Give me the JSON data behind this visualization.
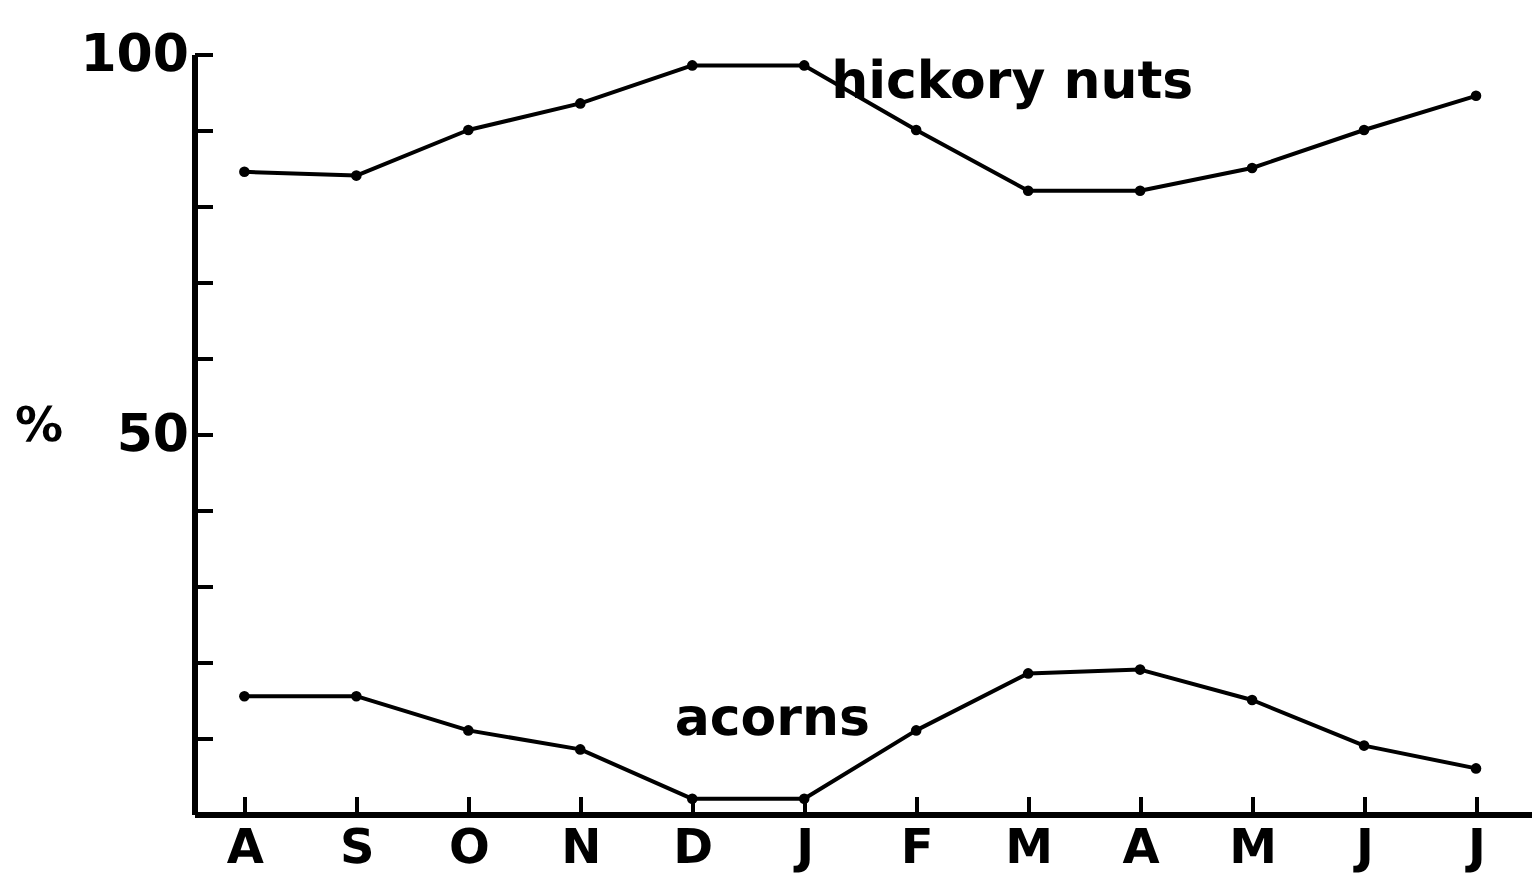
{
  "chart_data": {
    "type": "line",
    "ylabel": "%",
    "categories": [
      "A",
      "S",
      "O",
      "N",
      "D",
      "J",
      "F",
      "M",
      "A",
      "M",
      "J",
      "J"
    ],
    "series": [
      {
        "name": "hickory nuts",
        "color": "#000000",
        "values": [
          84.5,
          84,
          90,
          93.5,
          98.5,
          98.5,
          90,
          82,
          82,
          85,
          90,
          94.5
        ]
      },
      {
        "name": "acorns",
        "color": "#000000",
        "values": [
          15.5,
          15.5,
          11,
          8.5,
          2,
          2,
          11,
          18.5,
          19,
          15,
          9,
          6
        ]
      }
    ],
    "ylim": [
      0,
      100
    ],
    "yticks": [
      {
        "value": 0,
        "label": null
      },
      {
        "value": 10,
        "label": null
      },
      {
        "value": 20,
        "label": null
      },
      {
        "value": 30,
        "label": null
      },
      {
        "value": 40,
        "label": null
      },
      50,
      {
        "value": 60,
        "label": null
      },
      {
        "value": 70,
        "label": null
      },
      {
        "value": 80,
        "label": null
      },
      {
        "value": 90,
        "label": null
      },
      100
    ],
    "grid": false,
    "legend": false,
    "marker": "circle",
    "line_style": "solid"
  }
}
